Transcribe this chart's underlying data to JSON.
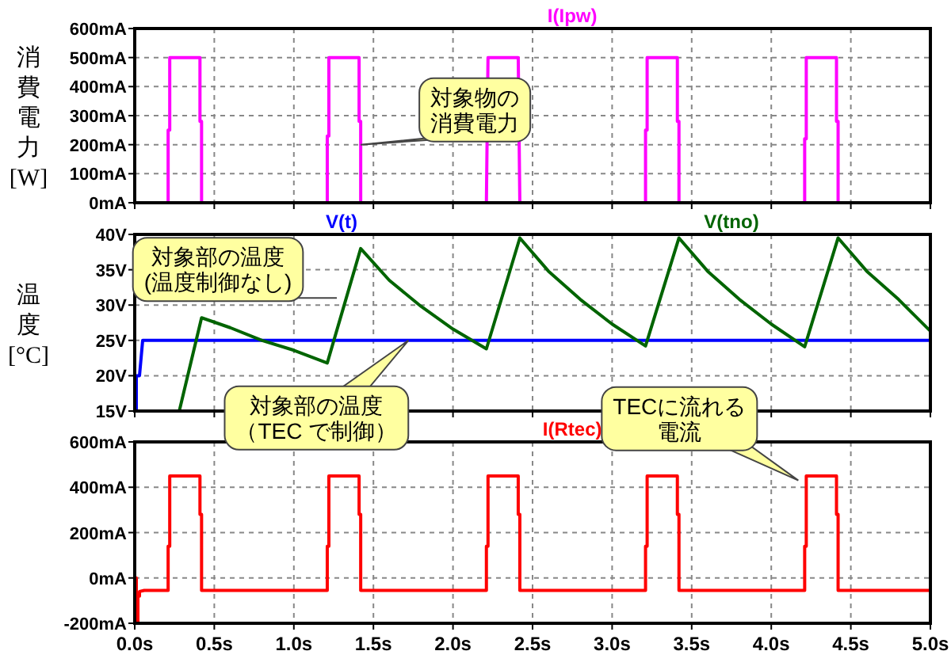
{
  "chart_data": [
    {
      "type": "line",
      "ylabel": "消費電力\n[W]",
      "xlim": [
        0,
        5
      ],
      "ylim": [
        0,
        600
      ],
      "tick_labels": "y",
      "grid": true,
      "legend": "top",
      "line_style": "solid",
      "xticks": [
        0,
        0.5,
        1,
        1.5,
        2,
        2.5,
        3,
        3.5,
        4,
        4.5,
        5
      ],
      "yticks": [
        {
          "value": 0,
          "label": "0mA"
        },
        {
          "value": 100,
          "label": "100mA"
        },
        {
          "value": 200,
          "label": "200mA"
        },
        {
          "value": 300,
          "label": "300mA"
        },
        {
          "value": 400,
          "label": "400mA"
        },
        {
          "value": 500,
          "label": "500mA"
        },
        {
          "value": 600,
          "label": "600mA"
        }
      ],
      "series": [
        {
          "name": "I(Ipw)",
          "color": "#ff00ff",
          "x": [
            0.21,
            0.21,
            0.22,
            0.22,
            0.41,
            0.41,
            0.42,
            0.42,
            1.21,
            1.21,
            1.22,
            1.22,
            1.41,
            1.41,
            1.42,
            1.42,
            2.21,
            2.22,
            2.41,
            2.42,
            3.21,
            3.21,
            3.22,
            3.22,
            3.41,
            3.41,
            3.42,
            3.42,
            4.21,
            4.21,
            4.22,
            4.22,
            4.41,
            4.41,
            4.42,
            4.42
          ],
          "values": [
            0,
            250,
            250,
            500,
            500,
            280,
            280,
            0,
            0,
            230,
            230,
            500,
            500,
            280,
            280,
            0,
            0,
            500,
            500,
            0,
            0,
            250,
            250,
            500,
            500,
            280,
            280,
            0,
            0,
            220,
            220,
            500,
            500,
            280,
            280,
            0
          ]
        }
      ],
      "annotations": [
        {
          "text": "対象物の消費電力",
          "x": 1.42,
          "y": 200
        }
      ]
    },
    {
      "type": "line",
      "ylabel": "温度\n[°C]",
      "xlim": [
        0,
        5
      ],
      "ylim": [
        15,
        40
      ],
      "tick_labels": "y",
      "grid": true,
      "legend": "top",
      "line_style": "solid",
      "xticks": [
        0,
        0.5,
        1,
        1.5,
        2,
        2.5,
        3,
        3.5,
        4,
        4.5,
        5
      ],
      "yticks": [
        {
          "value": 15,
          "label": "15V"
        },
        {
          "value": 20,
          "label": "20V"
        },
        {
          "value": 25,
          "label": "25V"
        },
        {
          "value": 30,
          "label": "30V"
        },
        {
          "value": 35,
          "label": "35V"
        },
        {
          "value": 40,
          "label": "40V"
        }
      ],
      "series": [
        {
          "name": "V(t)",
          "color": "#0000ff",
          "x": [
            0,
            0.01,
            0.01,
            0.03,
            0.05,
            5
          ],
          "values": [
            15,
            15,
            20,
            20,
            25,
            25
          ]
        },
        {
          "name": "V(tno)",
          "color": "#006400",
          "x": [
            0.28,
            0.42,
            0.6,
            0.8,
            1.0,
            1.21,
            1.42,
            1.6,
            1.8,
            2.0,
            2.21,
            2.42,
            2.6,
            2.8,
            3.0,
            3.21,
            3.42,
            3.6,
            3.8,
            4.0,
            4.21,
            4.42,
            4.6,
            4.8,
            5.0
          ],
          "values": [
            15,
            28.2,
            26.8,
            25.0,
            23.6,
            21.8,
            38,
            33.5,
            29.8,
            26.6,
            23.8,
            39.5,
            34.8,
            30.8,
            27.3,
            24.2,
            39.5,
            34.8,
            30.8,
            27.3,
            24.1,
            39.5,
            34.8,
            30.8,
            26.3
          ]
        }
      ],
      "annotations": [
        {
          "text": "対象部の温度(温度制御なし)",
          "x": 1.27,
          "y": 31
        },
        {
          "text": "対象部の温度（TEC で制御）",
          "x": 1.72,
          "y": 25
        }
      ]
    },
    {
      "type": "line",
      "xlim": [
        0,
        5
      ],
      "ylim": [
        -200,
        600
      ],
      "grid": true,
      "legend": "top",
      "line_style": "solid",
      "xticks": [
        {
          "value": 0,
          "label": "0.0s"
        },
        {
          "value": 0.5,
          "label": "0.5s"
        },
        {
          "value": 1,
          "label": "1.0s"
        },
        {
          "value": 1.5,
          "label": "1.5s"
        },
        {
          "value": 2,
          "label": "2.0s"
        },
        {
          "value": 2.5,
          "label": "2.5s"
        },
        {
          "value": 3,
          "label": "3.0s"
        },
        {
          "value": 3.5,
          "label": "3.5s"
        },
        {
          "value": 4,
          "label": "4.0s"
        },
        {
          "value": 4.5,
          "label": "4.5s"
        },
        {
          "value": 5,
          "label": "5.0s"
        }
      ],
      "yticks": [
        {
          "value": -200,
          "label": "-200mA"
        },
        {
          "value": 0,
          "label": "0mA"
        },
        {
          "value": 200,
          "label": "200mA"
        },
        {
          "value": 400,
          "label": "400mA"
        },
        {
          "value": 600,
          "label": "600mA"
        }
      ],
      "series": [
        {
          "name": "I(Rtec)",
          "color": "#ff0000",
          "x": [
            0,
            0.01,
            0.01,
            0.02,
            0.02,
            0.03,
            0.03,
            0.06,
            0.21,
            0.21,
            0.22,
            0.22,
            0.41,
            0.41,
            0.42,
            0.42,
            1.21,
            1.21,
            1.22,
            1.22,
            1.41,
            1.41,
            1.42,
            1.42,
            2.21,
            2.21,
            2.22,
            2.22,
            2.41,
            2.41,
            2.42,
            2.42,
            3.21,
            3.21,
            3.22,
            3.22,
            3.41,
            3.41,
            3.42,
            3.42,
            4.21,
            4.21,
            4.22,
            4.22,
            4.41,
            4.41,
            4.42,
            4.42,
            5
          ],
          "values": [
            0,
            0,
            -200,
            -200,
            -80,
            -80,
            -60,
            -55,
            -55,
            140,
            140,
            450,
            450,
            280,
            280,
            -55,
            -55,
            140,
            140,
            450,
            450,
            280,
            280,
            -55,
            -55,
            140,
            140,
            450,
            450,
            280,
            280,
            -55,
            -55,
            140,
            140,
            450,
            450,
            280,
            280,
            -55,
            -55,
            140,
            140,
            450,
            450,
            280,
            280,
            -55,
            -55
          ]
        }
      ],
      "annotations": [
        {
          "text": "TECに流れる電流",
          "x": 4.17,
          "y": 430
        }
      ]
    }
  ]
}
